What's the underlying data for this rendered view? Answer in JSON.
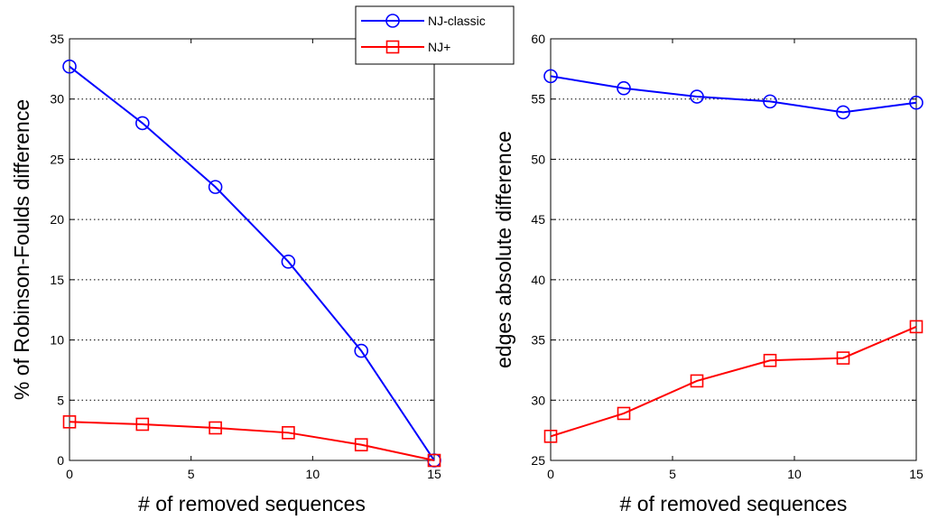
{
  "chart_data": [
    {
      "type": "line",
      "xlabel": "# of removed sequences",
      "ylabel": "% of Robinson-Foulds difference",
      "xlim": [
        0,
        15
      ],
      "ylim": [
        0,
        35
      ],
      "xticks": [
        "0",
        "5",
        "10",
        "15"
      ],
      "yticks": [
        "0",
        "5",
        "10",
        "15",
        "20",
        "25",
        "30",
        "35"
      ],
      "grid": "horizontal dotted",
      "x": [
        0,
        3,
        6,
        9,
        12,
        15
      ],
      "series": [
        {
          "name": "NJ-classic",
          "color": "#0000ff",
          "marker": "circle",
          "values": [
            32.7,
            28.0,
            22.7,
            16.5,
            9.1,
            0.0
          ]
        },
        {
          "name": "NJ+",
          "color": "#ff0000",
          "marker": "square",
          "values": [
            3.2,
            3.0,
            2.7,
            2.3,
            1.3,
            0.0
          ]
        }
      ]
    },
    {
      "type": "line",
      "xlabel": "# of removed sequences",
      "ylabel": "edges absolute difference",
      "xlim": [
        0,
        15
      ],
      "ylim": [
        25,
        60
      ],
      "xticks": [
        "0",
        "5",
        "10",
        "15"
      ],
      "yticks": [
        "25",
        "30",
        "35",
        "40",
        "45",
        "50",
        "55",
        "60"
      ],
      "grid": "horizontal dotted",
      "x": [
        0,
        3,
        6,
        9,
        12,
        15
      ],
      "series": [
        {
          "name": "NJ-classic",
          "color": "#0000ff",
          "marker": "circle",
          "values": [
            56.9,
            55.9,
            55.2,
            54.8,
            53.9,
            54.7
          ]
        },
        {
          "name": "NJ+",
          "color": "#ff0000",
          "marker": "square",
          "values": [
            27.0,
            28.9,
            31.6,
            33.3,
            33.5,
            36.1
          ]
        }
      ]
    }
  ],
  "legend": {
    "placement": "top-center",
    "entries": [
      {
        "label": "NJ-classic",
        "color": "#0000ff",
        "marker": "circle"
      },
      {
        "label": "NJ+",
        "color": "#ff0000",
        "marker": "square"
      }
    ]
  }
}
